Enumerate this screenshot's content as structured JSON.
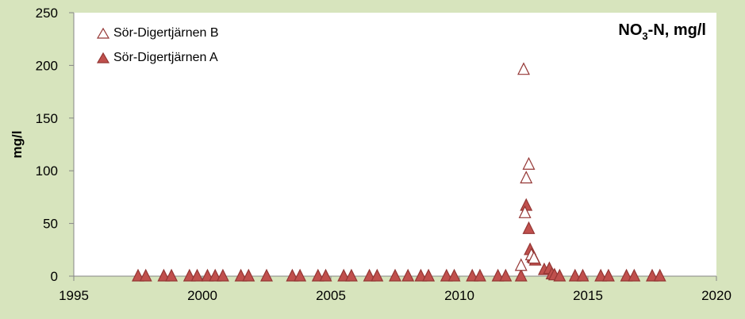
{
  "chart_data": {
    "type": "scatter",
    "title": "NO3-N, mg/l",
    "title_main": "NO",
    "title_sub": "3",
    "title_rest": "-N, mg/l",
    "xlabel": "",
    "ylabel": "mg/l",
    "xlim": [
      1995,
      2020
    ],
    "ylim": [
      0,
      250
    ],
    "xticks": [
      1995,
      2000,
      2005,
      2010,
      2015,
      2020
    ],
    "yticks": [
      0,
      50,
      100,
      150,
      200,
      250
    ],
    "grid": false,
    "legend_position": "top-left",
    "colors": {
      "background": "#d7e4bd",
      "series_fill": "#c0504d",
      "series_stroke": "#943634",
      "open_fill": "#ffffff"
    },
    "series": [
      {
        "name": "Sör-Digertjärnen B",
        "marker": "open-triangle",
        "points": [
          [
            2012.4,
            10
          ],
          [
            2012.5,
            196
          ],
          [
            2012.55,
            60
          ],
          [
            2012.6,
            93
          ],
          [
            2012.7,
            106
          ],
          [
            2012.8,
            20
          ],
          [
            2012.9,
            17
          ]
        ]
      },
      {
        "name": "Sör-Digertjärnen A",
        "marker": "filled-triangle",
        "points": [
          [
            1997.5,
            0
          ],
          [
            1997.8,
            0
          ],
          [
            1998.5,
            0
          ],
          [
            1998.8,
            0
          ],
          [
            1999.5,
            0
          ],
          [
            1999.8,
            0
          ],
          [
            2000.2,
            0
          ],
          [
            2000.5,
            0
          ],
          [
            2000.8,
            0
          ],
          [
            2001.5,
            0
          ],
          [
            2001.8,
            0
          ],
          [
            2002.5,
            0
          ],
          [
            2003.5,
            0
          ],
          [
            2003.8,
            0
          ],
          [
            2004.5,
            0
          ],
          [
            2004.8,
            0
          ],
          [
            2005.5,
            0
          ],
          [
            2005.8,
            0
          ],
          [
            2006.5,
            0
          ],
          [
            2006.8,
            0
          ],
          [
            2007.5,
            0
          ],
          [
            2008.0,
            0
          ],
          [
            2008.5,
            0
          ],
          [
            2008.8,
            0
          ],
          [
            2009.5,
            0
          ],
          [
            2009.8,
            0
          ],
          [
            2010.5,
            0
          ],
          [
            2010.8,
            0
          ],
          [
            2011.5,
            0
          ],
          [
            2011.8,
            0
          ],
          [
            2012.4,
            0
          ],
          [
            2012.6,
            67
          ],
          [
            2012.7,
            45
          ],
          [
            2012.75,
            25
          ],
          [
            2012.85,
            18
          ],
          [
            2012.95,
            15
          ],
          [
            2013.3,
            6
          ],
          [
            2013.5,
            7
          ],
          [
            2013.6,
            2
          ],
          [
            2013.7,
            1
          ],
          [
            2013.9,
            0
          ],
          [
            2014.5,
            0
          ],
          [
            2014.8,
            0
          ],
          [
            2015.5,
            0
          ],
          [
            2015.8,
            0
          ],
          [
            2016.5,
            0
          ],
          [
            2016.8,
            0
          ],
          [
            2017.5,
            0
          ],
          [
            2017.8,
            0
          ]
        ]
      }
    ]
  }
}
